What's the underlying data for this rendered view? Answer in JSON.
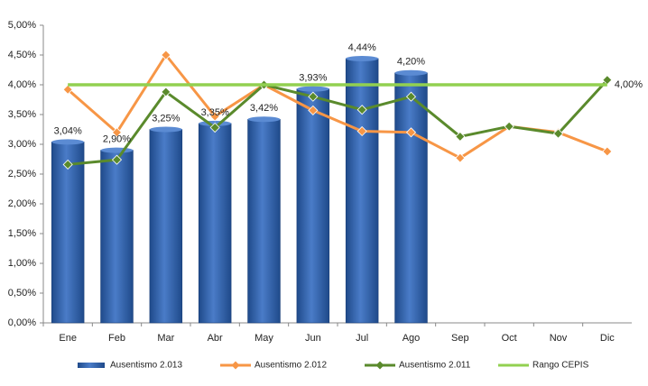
{
  "chart_data": {
    "type": "bar",
    "categories": [
      "Ene",
      "Feb",
      "Mar",
      "Abr",
      "May",
      "Jun",
      "Jul",
      "Ago",
      "Sep",
      "Oct",
      "Nov",
      "Dic"
    ],
    "ylim": [
      0,
      5
    ],
    "yticks": [
      {
        "value": 0,
        "label": "0,00%"
      },
      {
        "value": 0.5,
        "label": "0,50%"
      },
      {
        "value": 1,
        "label": "1,00%"
      },
      {
        "value": 1.5,
        "label": "1,50%"
      },
      {
        "value": 2,
        "label": "2,00%"
      },
      {
        "value": 2.5,
        "label": "2,50%"
      },
      {
        "value": 3,
        "label": "3,00%"
      },
      {
        "value": 3.5,
        "label": "3,50%"
      },
      {
        "value": 4,
        "label": "4,00%"
      },
      {
        "value": 4.5,
        "label": "4,50%"
      },
      {
        "value": 5,
        "label": "5,00%"
      }
    ],
    "series": [
      {
        "name": "Ausentismo 2.013",
        "type": "bar",
        "color": "#3565B0",
        "label_color": "#2F5597",
        "values": [
          3.04,
          2.9,
          3.25,
          3.35,
          3.42,
          3.93,
          4.44,
          4.2,
          null,
          null,
          null,
          null
        ],
        "value_labels": [
          "3,04%",
          "2,90%",
          "3,25%",
          "3,35%",
          "3,42%",
          "3,93%",
          "4,44%",
          "4,20%",
          null,
          null,
          null,
          null
        ]
      },
      {
        "name": "Ausentismo 2.012",
        "type": "line",
        "marker": true,
        "color": "#F79646",
        "values": [
          3.92,
          3.2,
          4.5,
          3.47,
          4.0,
          3.57,
          3.22,
          3.2,
          2.77,
          3.3,
          3.2,
          2.88
        ]
      },
      {
        "name": "Ausentismo 2.011",
        "type": "line",
        "marker": true,
        "color": "#5A8A2C",
        "values": [
          2.66,
          2.74,
          3.88,
          3.28,
          4.0,
          3.8,
          3.58,
          3.8,
          3.13,
          3.3,
          3.18,
          4.08
        ]
      },
      {
        "name": "Rango CEPIS",
        "type": "line",
        "marker": false,
        "color": "#92D050",
        "label_color": "#8C8C30",
        "values": [
          4,
          4,
          4,
          4,
          4,
          4,
          4,
          4,
          4,
          4,
          4,
          4
        ],
        "value_labels": [
          null,
          null,
          null,
          null,
          null,
          null,
          null,
          null,
          null,
          null,
          null,
          "4,00%"
        ]
      }
    ]
  }
}
